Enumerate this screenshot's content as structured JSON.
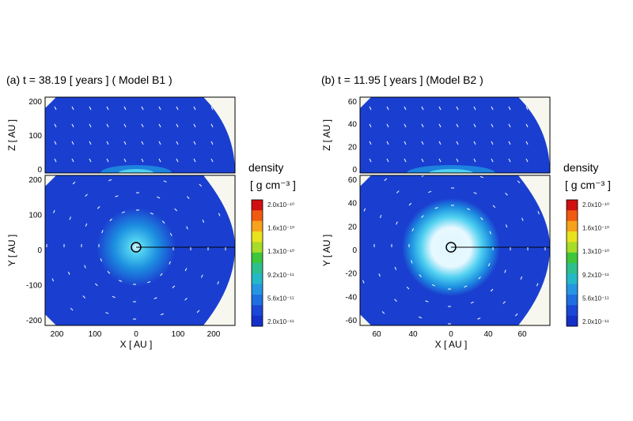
{
  "figure": {
    "panels": [
      {
        "id": "a",
        "title": "(a) t = 38.19 [ years ] ( Model B1 )",
        "top_ylabel": "Z [ AU ]",
        "bottom_ylabel": "Y [ AU ]",
        "xlabel": "X [ AU ]",
        "top_yticks": [
          "200",
          "100",
          "0"
        ],
        "bottom_yticks": [
          "200",
          "100",
          "0",
          "-100",
          "-200"
        ],
        "xticks": [
          "200",
          "100",
          "0",
          "100",
          "200"
        ]
      },
      {
        "id": "b",
        "title": "(b) t = 11.95 [ years ] (Model B2 )",
        "top_ylabel": "Z [ AU ]",
        "bottom_ylabel": "Y [ AU ]",
        "xlabel": "X [ AU ]",
        "top_yticks": [
          "60",
          "40",
          "20",
          "0"
        ],
        "bottom_yticks": [
          "60",
          "40",
          "20",
          "0",
          "-20",
          "-40",
          "-60"
        ],
        "xticks": [
          "60",
          "40",
          "0",
          "40",
          "60"
        ]
      }
    ],
    "colorbar": {
      "title": "density",
      "unit": "[ g cm⁻³ ]",
      "labels": [
        "2.0x10⁻¹⁰",
        "1.6x10⁻¹⁰",
        "1.3x10⁻¹⁰",
        "9.2x10⁻¹¹",
        "5.6x10⁻¹¹",
        "2.0x10⁻¹¹"
      ],
      "colors": [
        "#d01010",
        "#f05a10",
        "#f7a21c",
        "#e9e21e",
        "#a7dc28",
        "#3ec63c",
        "#2fbf8f",
        "#25b8c6",
        "#2796e2",
        "#1f6fe0",
        "#1a47d6",
        "#1530c8"
      ]
    },
    "colors": {
      "field": "#1a3fd0",
      "disk_outer": "#1d8fe0",
      "disk_inner": "#4fd0f0",
      "core": "#dff6ff",
      "vector": "#ffffff"
    }
  },
  "chart_data": [
    {
      "type": "heatmap",
      "panel": "a",
      "title": "(a) t = 38.19 [ years ] ( Model B1 )",
      "quantity": "density",
      "units": "g cm^-3",
      "colorbar_range": [
        2e-11,
        2e-10
      ],
      "colorbar_labels": [
        2e-10,
        1.6e-10,
        1.3e-10,
        9.2e-11,
        5.6e-11,
        2e-11
      ],
      "top": {
        "xlabel": "",
        "ylabel": "Z [ AU ]",
        "ylim": [
          0,
          200
        ]
      },
      "bottom": {
        "xlabel": "X [ AU ]",
        "ylabel": "Y [ AU ]",
        "ylim": [
          -200,
          200
        ],
        "xlim": [
          -250,
          250
        ]
      },
      "xticks": [
        -200,
        -100,
        0,
        100,
        200
      ]
    },
    {
      "type": "heatmap",
      "panel": "b",
      "title": "(b) t = 11.95 [ years ] (Model B2 )",
      "quantity": "density",
      "units": "g cm^-3",
      "colorbar_range": [
        2e-11,
        2e-10
      ],
      "colorbar_labels": [
        2e-10,
        1.6e-10,
        1.3e-10,
        9.2e-11,
        5.6e-11,
        2e-11
      ],
      "top": {
        "xlabel": "",
        "ylabel": "Z [ AU ]",
        "ylim": [
          0,
          60
        ]
      },
      "bottom": {
        "xlabel": "X [ AU ]",
        "ylabel": "Y [ AU ]",
        "ylim": [
          -60,
          60
        ],
        "xlim": [
          -75,
          75
        ]
      },
      "xticks": [
        -60,
        -40,
        0,
        40,
        60
      ]
    }
  ]
}
